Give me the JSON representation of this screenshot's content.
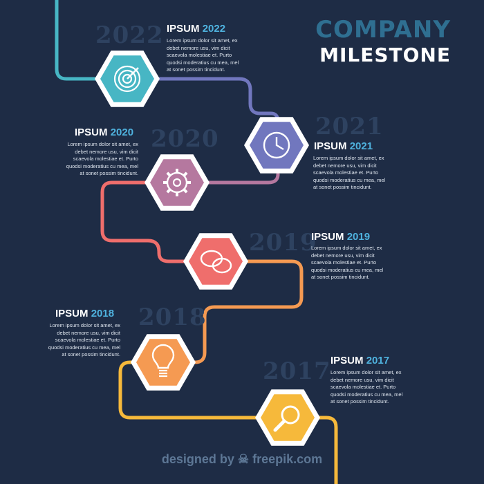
{
  "header": {
    "title_line1": "COMPANY",
    "title_line2": "MILESTONE"
  },
  "milestones": [
    {
      "label": "IPSUM",
      "year": "2022",
      "text": "Lorem ipsum dolor sit amet, ex debet nemore usu, vim dicit scaevola molestiae et. Purto quodsi moderatius cu mea, mel at sonet possim tincidunt.",
      "color": "#47b6c4",
      "icon": "target-icon"
    },
    {
      "label": "IPSUM",
      "year": "2021",
      "text": "Lorem ipsum dolor sit amet, ex debet nemore usu, vim dicit scaevola molestiae et. Purto quodsi moderatius cu mea, mel at sonet possim tincidunt.",
      "color": "#7177be",
      "icon": "clock-icon"
    },
    {
      "label": "IPSUM",
      "year": "2020",
      "text": "Lorem ipsum dolor sit amet, ex debet nemore usu, vim dicit scaevola molestiae et. Purto quodsi moderatius cu mea, mel at sonet possim tincidunt.",
      "color": "#b5789f",
      "icon": "gear-icon"
    },
    {
      "label": "IPSUM",
      "year": "2019",
      "text": "Lorem ipsum dolor sit amet, ex debet nemore usu, vim dicit scaevola molestiae et. Purto quodsi moderatius cu mea, mel at sonet possim tincidunt.",
      "color": "#ef6e6c",
      "icon": "chat-bubbles-icon"
    },
    {
      "label": "IPSUM",
      "year": "2018",
      "text": "Lorem ipsum dolor sit amet, ex debet nemore usu, vim dicit scaevola molestiae et. Purto quodsi moderatius cu mea, mel at sonet possim tincidunt.",
      "color": "#f59a52",
      "icon": "lightbulb-icon"
    },
    {
      "label": "IPSUM",
      "year": "2017",
      "text": "Lorem ipsum dolor sit amet, ex debet nemore usu, vim dicit scaevola molestiae et. Purto quodsi moderatius cu mea, mel at sonet possim tincidunt.",
      "color": "#f6b93b",
      "icon": "magnifier-icon"
    }
  ],
  "ghost_years": [
    "2022",
    "2021",
    "2020",
    "2019",
    "2018",
    "2017"
  ],
  "path_colors": [
    "#47b6c4",
    "#7177be",
    "#b5789f",
    "#ef6e6c",
    "#f59a52",
    "#f6b93b"
  ],
  "credit": {
    "prefix": "designed by",
    "brand": "freepik.com"
  }
}
